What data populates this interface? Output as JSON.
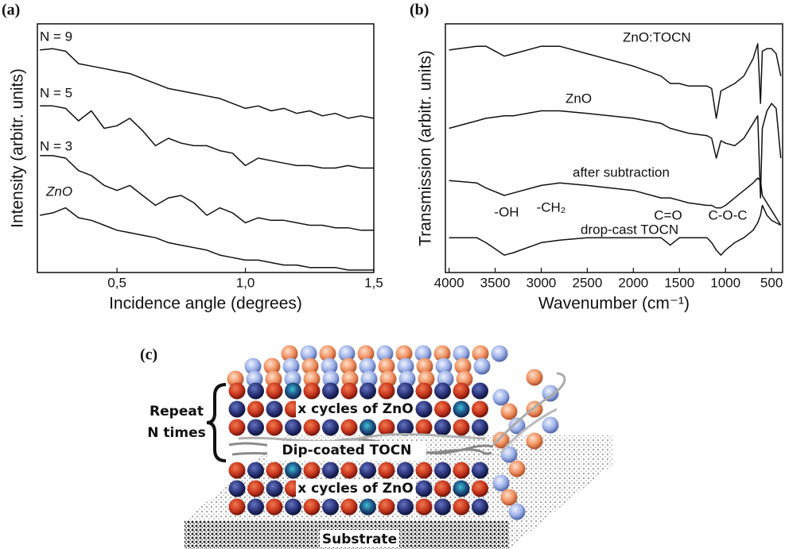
{
  "chart_data": [
    {
      "type": "line",
      "panel_label": "(a)",
      "x_label": "Incidence angle (degrees)",
      "y_label": "Intensity (arbitr. units)",
      "x": [
        0.2,
        0.25,
        0.3,
        0.35,
        0.4,
        0.45,
        0.5,
        0.55,
        0.6,
        0.65,
        0.7,
        0.75,
        0.8,
        0.85,
        0.9,
        0.95,
        1.0,
        1.05,
        1.1,
        1.15,
        1.2,
        1.25,
        1.3,
        1.35,
        1.4,
        1.45,
        1.5
      ],
      "xlim": [
        0.19,
        1.5
      ],
      "ylim": [
        0,
        100
      ],
      "xticks": [
        {
          "value": 0.5,
          "label": "0,5"
        },
        {
          "value": 1.0,
          "label": "1,0"
        },
        {
          "value": 1.5,
          "label": "1,5"
        }
      ],
      "series": [
        {
          "name": "N = 9",
          "color": "#111111",
          "values": [
            89.5,
            90,
            89,
            84,
            83,
            82,
            81,
            80,
            78,
            76,
            74,
            73,
            72,
            71,
            70,
            68,
            66,
            67,
            65,
            66,
            64,
            65,
            63,
            64,
            62,
            63,
            62
          ]
        },
        {
          "name": "N = 5",
          "color": "#111111",
          "values": [
            67,
            67,
            66,
            61,
            65,
            58,
            59,
            62,
            57,
            51,
            54,
            52,
            51,
            51,
            49,
            48,
            43,
            46,
            45,
            44,
            43,
            43,
            42,
            42,
            43,
            42,
            42
          ]
        },
        {
          "name": "N = 3",
          "color": "#111111",
          "values": [
            47,
            47,
            46,
            41,
            39,
            35,
            33,
            35,
            31,
            27,
            30,
            31,
            28,
            23,
            26,
            24,
            20,
            22,
            21,
            21,
            20,
            19,
            19,
            18,
            18,
            17,
            17
          ]
        },
        {
          "name": "ZnO",
          "color": "#111111",
          "values": [
            23,
            24,
            26,
            22,
            21,
            19,
            17,
            16,
            15,
            14,
            12,
            11,
            10,
            9,
            7,
            6,
            5,
            5,
            4,
            3,
            3,
            2,
            2,
            2,
            1,
            1,
            1
          ]
        }
      ]
    },
    {
      "type": "line",
      "panel_label": "(b)",
      "x_label": "Wavenumber (cm⁻¹)",
      "y_label": "Transmission (arbitr. units)",
      "x": [
        4000,
        3700,
        3600,
        3400,
        3300,
        3000,
        2800,
        2500,
        2000,
        1700,
        1600,
        1500,
        1400,
        1200,
        1150,
        1100,
        1050,
        1000,
        900,
        800,
        700,
        650,
        620,
        600,
        550,
        500,
        450,
        400
      ],
      "xlim": [
        4040,
        380
      ],
      "ylim": [
        0,
        100
      ],
      "xticks": [
        4000,
        3500,
        3000,
        2500,
        2000,
        1500,
        1000,
        500
      ],
      "series": [
        {
          "name": "ZnO:TOCN",
          "color": "#111111",
          "values": [
            89.5,
            91,
            91,
            87,
            88,
            91,
            91,
            88,
            83,
            79,
            76,
            76,
            75,
            75,
            74,
            62,
            73,
            74,
            76,
            79,
            86,
            92,
            68,
            89,
            90,
            90,
            88,
            79
          ]
        },
        {
          "name": "ZnO",
          "color": "#111111",
          "values": [
            58,
            61,
            62,
            63,
            63,
            65,
            65,
            64,
            62,
            60,
            58,
            57,
            56,
            55,
            54,
            46,
            53,
            52,
            51,
            54,
            60,
            63,
            30,
            58,
            65,
            68,
            66,
            46
          ]
        },
        {
          "name": "after subtraction",
          "color": "#111111",
          "values": [
            37,
            36,
            34,
            31,
            32,
            35,
            36,
            35,
            33,
            30,
            30,
            29,
            28,
            27,
            27,
            26,
            26,
            27,
            30,
            33,
            36,
            38,
            37,
            31,
            28,
            25,
            22,
            19
          ]
        },
        {
          "name": "drop-cast TOCN",
          "color": "#111111",
          "values": [
            14,
            14,
            12,
            7,
            8,
            12,
            13,
            14,
            14,
            14,
            11,
            14,
            14,
            14,
            12,
            9,
            7,
            9,
            12,
            14,
            17,
            20,
            23,
            27,
            23,
            21,
            20,
            19
          ]
        }
      ],
      "annotations": [
        "-OH",
        "-CH₂",
        "C=O",
        "C-O-C"
      ]
    }
  ],
  "diagram": {
    "label": "(c)",
    "repeat": "Repeat",
    "n_times": "N times",
    "zno_top": "x cycles of ZnO",
    "tocn": "Dip-coated TOCN",
    "zno_bottom": "x cycles of ZnO",
    "substrate": "Substrate"
  }
}
